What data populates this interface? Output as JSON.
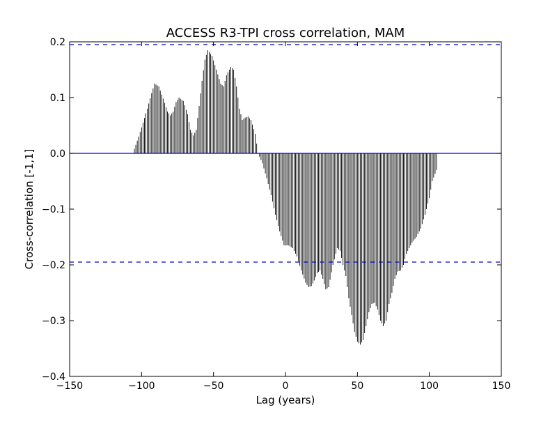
{
  "chart_data": {
    "type": "bar",
    "title": "ACCESS R3-TPI cross correlation, MAM",
    "xlabel": "Lag (years)",
    "ylabel": "Cross-correlation [-1,1]",
    "xlim": [
      -150,
      150
    ],
    "ylim": [
      -0.4,
      0.2
    ],
    "xticks": [
      -150,
      -100,
      -50,
      0,
      50,
      100,
      150
    ],
    "xtick_labels": [
      "−150",
      "−100",
      "−50",
      "0",
      "50",
      "100",
      "150"
    ],
    "yticks": [
      -0.4,
      -0.3,
      -0.2,
      -0.1,
      0.0,
      0.1,
      0.2
    ],
    "ytick_labels": [
      "−0.4",
      "−0.3",
      "−0.2",
      "−0.1",
      "0.0",
      "0.1",
      "0.2"
    ],
    "grid": false,
    "confidence_bounds": [
      0.195,
      -0.195
    ],
    "zero_line": 0,
    "lag_range": [
      -105,
      105
    ],
    "colors": {
      "bars": "#000000",
      "reference_lines": "#0000cc",
      "axes": "#000000"
    },
    "profile": [
      [
        -105,
        0.008
      ],
      [
        -102,
        0.03
      ],
      [
        -99,
        0.055
      ],
      [
        -96,
        0.08
      ],
      [
        -93,
        0.108
      ],
      [
        -91,
        0.125
      ],
      [
        -88,
        0.12
      ],
      [
        -85,
        0.098
      ],
      [
        -82,
        0.075
      ],
      [
        -80,
        0.068
      ],
      [
        -78,
        0.075
      ],
      [
        -76,
        0.092
      ],
      [
        -74,
        0.1
      ],
      [
        -71,
        0.094
      ],
      [
        -68,
        0.07
      ],
      [
        -66,
        0.042
      ],
      [
        -64,
        0.032
      ],
      [
        -62,
        0.042
      ],
      [
        -60,
        0.085
      ],
      [
        -58,
        0.13
      ],
      [
        -56,
        0.168
      ],
      [
        -54,
        0.185
      ],
      [
        -51,
        0.175
      ],
      [
        -48,
        0.15
      ],
      [
        -45,
        0.125
      ],
      [
        -43,
        0.12
      ],
      [
        -41,
        0.14
      ],
      [
        -38,
        0.155
      ],
      [
        -36,
        0.15
      ],
      [
        -34,
        0.12
      ],
      [
        -32,
        0.08
      ],
      [
        -30,
        0.06
      ],
      [
        -28,
        0.064
      ],
      [
        -26,
        0.066
      ],
      [
        -24,
        0.06
      ],
      [
        -21,
        0.035
      ],
      [
        -19,
        0.0
      ],
      [
        -16,
        -0.018
      ],
      [
        -13,
        -0.045
      ],
      [
        -10,
        -0.075
      ],
      [
        -7,
        -0.11
      ],
      [
        -4,
        -0.14
      ],
      [
        -1,
        -0.165
      ],
      [
        2,
        -0.165
      ],
      [
        5,
        -0.17
      ],
      [
        8,
        -0.185
      ],
      [
        11,
        -0.21
      ],
      [
        14,
        -0.232
      ],
      [
        16,
        -0.24
      ],
      [
        18,
        -0.238
      ],
      [
        20,
        -0.228
      ],
      [
        22,
        -0.215
      ],
      [
        24,
        -0.21
      ],
      [
        26,
        -0.225
      ],
      [
        28,
        -0.244
      ],
      [
        30,
        -0.24
      ],
      [
        33,
        -0.2
      ],
      [
        36,
        -0.17
      ],
      [
        38,
        -0.175
      ],
      [
        40,
        -0.2
      ],
      [
        42,
        -0.22
      ],
      [
        44,
        -0.26
      ],
      [
        46,
        -0.29
      ],
      [
        48,
        -0.32
      ],
      [
        50,
        -0.338
      ],
      [
        52,
        -0.343
      ],
      [
        54,
        -0.335
      ],
      [
        56,
        -0.31
      ],
      [
        58,
        -0.285
      ],
      [
        60,
        -0.27
      ],
      [
        62,
        -0.268
      ],
      [
        64,
        -0.28
      ],
      [
        66,
        -0.3
      ],
      [
        68,
        -0.31
      ],
      [
        70,
        -0.3
      ],
      [
        72,
        -0.27
      ],
      [
        74,
        -0.25
      ],
      [
        76,
        -0.225
      ],
      [
        78,
        -0.212
      ],
      [
        80,
        -0.21
      ],
      [
        82,
        -0.2
      ],
      [
        84,
        -0.18
      ],
      [
        86,
        -0.17
      ],
      [
        88,
        -0.16
      ],
      [
        91,
        -0.15
      ],
      [
        94,
        -0.135
      ],
      [
        97,
        -0.11
      ],
      [
        100,
        -0.08
      ],
      [
        102,
        -0.05
      ],
      [
        105,
        -0.03
      ]
    ]
  }
}
